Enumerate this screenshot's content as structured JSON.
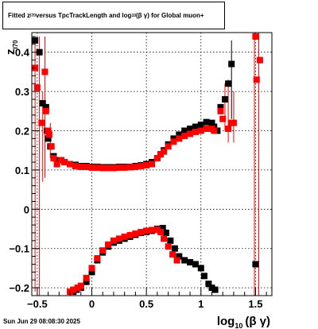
{
  "title": {
    "part1": "Fitted  z",
    "sub1": "I70",
    "part2": "  versus TpcTrackLength and log",
    "sub2": "10",
    "part3": " (β  γ) for Global muon+"
  },
  "datestamp": "Sun Jun 29 08:08:30 2025",
  "chart_data": {
    "type": "scatter",
    "xlabel_main": "log",
    "xlabel_sub": "10",
    "xlabel_rest": "(β γ)",
    "ylabel_main": "z",
    "ylabel_sub": "I70",
    "xlim": [
      -0.55,
      1.65
    ],
    "ylim": [
      -0.22,
      0.45
    ],
    "x_ticks": [
      {
        "v": -0.5,
        "label": "−0.5"
      },
      {
        "v": 0,
        "label": "0"
      },
      {
        "v": 0.5,
        "label": "0.5"
      },
      {
        "v": 1,
        "label": "1"
      },
      {
        "v": 1.5,
        "label": "1.5"
      }
    ],
    "y_ticks": [
      {
        "v": -0.2,
        "label": "−0.2"
      },
      {
        "v": -0.1,
        "label": "−0.1"
      },
      {
        "v": 0,
        "label": "0"
      },
      {
        "v": 0.1,
        "label": "0.1"
      },
      {
        "v": 0.2,
        "label": "0.2"
      },
      {
        "v": 0.3,
        "label": "0.3"
      },
      {
        "v": 0.4,
        "label": "0.4"
      }
    ],
    "grid": true,
    "colors": {
      "black": "#000000",
      "red": "#ff0000"
    },
    "series": [
      {
        "color": "#000000",
        "marker": "square",
        "points": [
          [
            -0.52,
            0.43
          ],
          [
            -0.48,
            0.4
          ],
          [
            -0.45,
            0.27
          ],
          [
            -0.42,
            0.26
          ],
          [
            -0.41,
            0.2
          ],
          [
            -0.4,
            0.18
          ],
          [
            -0.38,
            0.16
          ],
          [
            -0.35,
            0.135
          ],
          [
            -0.3,
            0.125
          ],
          [
            -0.25,
            0.12
          ],
          [
            -0.2,
            0.115
          ],
          [
            -0.15,
            0.113
          ],
          [
            -0.1,
            0.11
          ],
          [
            -0.05,
            0.11
          ],
          [
            0,
            0.108
          ],
          [
            0.05,
            0.108
          ],
          [
            0.1,
            0.107
          ],
          [
            0.15,
            0.107
          ],
          [
            0.2,
            0.107
          ],
          [
            0.25,
            0.108
          ],
          [
            0.3,
            0.108
          ],
          [
            0.35,
            0.108
          ],
          [
            0.4,
            0.11
          ],
          [
            0.45,
            0.112
          ],
          [
            0.5,
            0.115
          ],
          [
            0.55,
            0.12
          ],
          [
            0.6,
            0.13
          ],
          [
            0.63,
            0.14
          ],
          [
            0.66,
            0.15
          ],
          [
            0.7,
            0.165
          ],
          [
            0.75,
            0.18
          ],
          [
            0.8,
            0.19
          ],
          [
            0.85,
            0.2
          ],
          [
            0.9,
            0.205
          ],
          [
            0.95,
            0.21
          ],
          [
            1,
            0.215
          ],
          [
            1.05,
            0.222
          ],
          [
            1.1,
            0.22
          ],
          [
            1.12,
            0.21
          ],
          [
            1.15,
            0.2
          ],
          [
            1.18,
            0.26
          ],
          [
            1.22,
            0.28
          ],
          [
            1.25,
            0.32
          ],
          [
            1.28,
            0.37
          ],
          [
            -0.17,
            -0.21
          ],
          [
            -0.14,
            -0.205
          ],
          [
            -0.1,
            -0.2
          ],
          [
            -0.05,
            -0.185
          ],
          [
            0,
            -0.16
          ],
          [
            0.05,
            -0.13
          ],
          [
            0.1,
            -0.11
          ],
          [
            0.15,
            -0.095
          ],
          [
            0.2,
            -0.085
          ],
          [
            0.25,
            -0.08
          ],
          [
            0.3,
            -0.075
          ],
          [
            0.35,
            -0.07
          ],
          [
            0.4,
            -0.065
          ],
          [
            0.45,
            -0.06
          ],
          [
            0.5,
            -0.058
          ],
          [
            0.55,
            -0.055
          ],
          [
            0.6,
            -0.05
          ],
          [
            0.65,
            -0.048
          ],
          [
            0.68,
            -0.06
          ],
          [
            0.72,
            -0.08
          ],
          [
            0.76,
            -0.1
          ],
          [
            0.8,
            -0.12
          ],
          [
            0.85,
            -0.13
          ],
          [
            0.9,
            -0.135
          ],
          [
            0.95,
            -0.14
          ],
          [
            1,
            -0.15
          ],
          [
            1.03,
            -0.17
          ],
          [
            1.07,
            -0.19
          ],
          [
            1.1,
            -0.2
          ],
          [
            1.13,
            -0.205
          ],
          [
            1.5,
            -0.14
          ]
        ]
      },
      {
        "color": "#ff0000",
        "marker": "square",
        "points": [
          [
            -0.52,
            0.36
          ],
          [
            -0.5,
            0.31
          ],
          [
            -0.46,
            0.22
          ],
          [
            -0.43,
            0.35
          ],
          [
            -0.42,
            0.25
          ],
          [
            -0.4,
            0.2
          ],
          [
            -0.39,
            0.19
          ],
          [
            -0.37,
            0.16
          ],
          [
            -0.35,
            0.13
          ],
          [
            -0.32,
            0.115
          ],
          [
            -0.28,
            0.125
          ],
          [
            -0.25,
            0.12
          ],
          [
            -0.2,
            0.115
          ],
          [
            -0.15,
            0.11
          ],
          [
            -0.1,
            0.108
          ],
          [
            -0.05,
            0.108
          ],
          [
            0,
            0.106
          ],
          [
            0.05,
            0.106
          ],
          [
            0.1,
            0.105
          ],
          [
            0.15,
            0.105
          ],
          [
            0.2,
            0.105
          ],
          [
            0.25,
            0.106
          ],
          [
            0.3,
            0.106
          ],
          [
            0.35,
            0.107
          ],
          [
            0.4,
            0.108
          ],
          [
            0.45,
            0.11
          ],
          [
            0.5,
            0.112
          ],
          [
            0.55,
            0.115
          ],
          [
            0.6,
            0.13
          ],
          [
            0.63,
            0.14
          ],
          [
            0.66,
            0.147
          ],
          [
            0.7,
            0.16
          ],
          [
            0.75,
            0.172
          ],
          [
            0.8,
            0.18
          ],
          [
            0.85,
            0.187
          ],
          [
            0.9,
            0.192
          ],
          [
            0.95,
            0.197
          ],
          [
            1,
            0.2
          ],
          [
            1.05,
            0.205
          ],
          [
            1.1,
            0.205
          ],
          [
            1.12,
            0.2
          ],
          [
            1.18,
            0.25
          ],
          [
            1.2,
            0.23
          ],
          [
            1.25,
            0.205
          ],
          [
            1.28,
            0.22
          ],
          [
            1.3,
            0.22
          ],
          [
            1.5,
            0.44
          ],
          [
            1.51,
            0.33
          ],
          [
            1.54,
            0.38
          ],
          [
            -0.2,
            -0.21
          ],
          [
            -0.17,
            -0.205
          ],
          [
            -0.13,
            -0.2
          ],
          [
            -0.1,
            -0.195
          ],
          [
            -0.05,
            -0.175
          ],
          [
            0,
            -0.15
          ],
          [
            0.05,
            -0.125
          ],
          [
            0.1,
            -0.105
          ],
          [
            0.15,
            -0.09
          ],
          [
            0.2,
            -0.08
          ],
          [
            0.25,
            -0.075
          ],
          [
            0.3,
            -0.07
          ],
          [
            0.35,
            -0.066
          ],
          [
            0.4,
            -0.062
          ],
          [
            0.45,
            -0.058
          ],
          [
            0.5,
            -0.055
          ],
          [
            0.55,
            -0.053
          ],
          [
            0.6,
            -0.052
          ],
          [
            0.63,
            -0.058
          ],
          [
            0.66,
            -0.075
          ],
          [
            0.7,
            -0.095
          ],
          [
            0.74,
            -0.115
          ],
          [
            0.78,
            -0.13
          ]
        ]
      }
    ],
    "error_bars": [
      {
        "x": -0.52,
        "lo": -0.21,
        "hi": 0.42,
        "color": "#ff0000"
      },
      {
        "x": -0.48,
        "lo": -0.22,
        "hi": 0.44,
        "color": "#ff0000"
      },
      {
        "x": -0.43,
        "lo": 0.08,
        "hi": 0.44,
        "color": "#ff0000"
      },
      {
        "x": -0.45,
        "lo": 0.07,
        "hi": 0.3,
        "color": "#ff0000"
      },
      {
        "x": -0.38,
        "lo": 0.13,
        "hi": 0.22,
        "color": "#ff0000"
      },
      {
        "x": 1.22,
        "lo": 0.2,
        "hi": 0.32,
        "color": "#ff0000"
      },
      {
        "x": 1.25,
        "lo": 0.17,
        "hi": 0.33,
        "color": "#ff0000"
      },
      {
        "x": 1.28,
        "lo": 0.23,
        "hi": 0.43,
        "color": "#000000"
      },
      {
        "x": 1.3,
        "lo": 0.17,
        "hi": 0.3,
        "color": "#ff0000"
      },
      {
        "x": 1.49,
        "lo": -0.22,
        "hi": 0.45,
        "color": "#ff0000"
      },
      {
        "x": 1.53,
        "lo": -0.22,
        "hi": 0.45,
        "color": "#ff0000"
      }
    ]
  }
}
